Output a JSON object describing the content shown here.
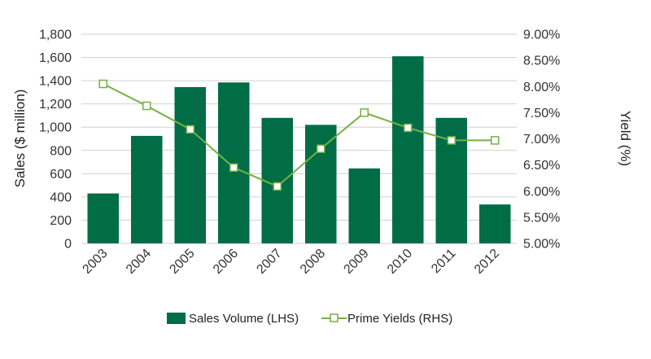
{
  "chart_data": {
    "type": "bar",
    "categories": [
      "2003",
      "2004",
      "2005",
      "2006",
      "2007",
      "2008",
      "2009",
      "2010",
      "2011",
      "2012"
    ],
    "series": [
      {
        "name": "Sales Volume (LHS)",
        "type": "bar",
        "axis": "left",
        "values": [
          430,
          925,
          1345,
          1385,
          1080,
          1020,
          645,
          1610,
          1080,
          335
        ],
        "color": "#006d46"
      },
      {
        "name": "Prime Yields (RHS)",
        "type": "line",
        "axis": "right",
        "values": [
          0.0805,
          0.0763,
          0.0718,
          0.0645,
          0.0609,
          0.0681,
          0.075,
          0.0721,
          0.0697,
          0.0697
        ],
        "color": "#76b043"
      }
    ],
    "ylabel": "Sales ($ million)",
    "y2label": "Yield (%)",
    "ylim": [
      0,
      1800
    ],
    "y2lim": [
      0.05,
      0.09
    ],
    "yticks": [
      "0",
      "200",
      "400",
      "600",
      "800",
      "1,000",
      "1,200",
      "1,400",
      "1,600",
      "1,800"
    ],
    "y2ticks": [
      "5.00%",
      "5.50%",
      "6.00%",
      "6.50%",
      "7.00%",
      "7.50%",
      "8.00%",
      "8.50%",
      "9.00%"
    ],
    "grid": true,
    "legend_position": "bottom"
  }
}
